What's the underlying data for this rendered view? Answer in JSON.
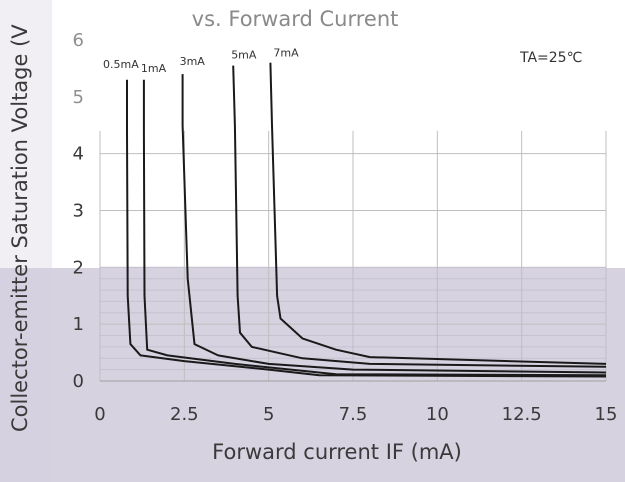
{
  "chart_data": {
    "type": "line",
    "title": "vs. Forward Current",
    "xlabel": "Forward current IF (mA)",
    "ylabel": "Collector-emitter Saturation Voltage (V",
    "annotation": "TA=25℃",
    "xlim": [
      0,
      15
    ],
    "ylim": [
      0,
      6
    ],
    "x_ticks": [
      "0",
      "2.5",
      "5",
      "7.5",
      "10",
      "12.5",
      "15"
    ],
    "y_ticks": [
      "0",
      "1",
      "2",
      "3",
      "4",
      "5",
      "6"
    ],
    "grid": true,
    "legend": "none",
    "colors": {
      "line": "#1a1a1a",
      "plot_background": "#ffffff",
      "lower_band": "#d6d2e0",
      "grid": "#bfbfbf"
    },
    "series": [
      {
        "name": "0.5mA",
        "points": [
          [
            0.8,
            5.3
          ],
          [
            0.8,
            4.4
          ],
          [
            0.82,
            1.5
          ],
          [
            0.9,
            0.65
          ],
          [
            1.2,
            0.45
          ],
          [
            2.5,
            0.35
          ],
          [
            5,
            0.2
          ],
          [
            6.5,
            0.1
          ],
          [
            15,
            0.08
          ]
        ]
      },
      {
        "name": "1mA",
        "points": [
          [
            1.3,
            5.3
          ],
          [
            1.3,
            4.4
          ],
          [
            1.32,
            1.5
          ],
          [
            1.4,
            0.55
          ],
          [
            2,
            0.45
          ],
          [
            4,
            0.3
          ],
          [
            7,
            0.12
          ],
          [
            15,
            0.1
          ]
        ]
      },
      {
        "name": "3mA",
        "points": [
          [
            2.45,
            5.4
          ],
          [
            2.45,
            4.5
          ],
          [
            2.6,
            1.8
          ],
          [
            2.8,
            0.65
          ],
          [
            3.5,
            0.45
          ],
          [
            5,
            0.3
          ],
          [
            7.5,
            0.2
          ],
          [
            15,
            0.15
          ]
        ]
      },
      {
        "name": "5mA",
        "points": [
          [
            3.95,
            5.55
          ],
          [
            4,
            4.5
          ],
          [
            4.08,
            1.5
          ],
          [
            4.15,
            0.85
          ],
          [
            4.5,
            0.6
          ],
          [
            6,
            0.4
          ],
          [
            8,
            0.3
          ],
          [
            15,
            0.25
          ]
        ]
      },
      {
        "name": "7mA",
        "points": [
          [
            5.05,
            5.6
          ],
          [
            5.1,
            4.5
          ],
          [
            5.25,
            1.5
          ],
          [
            5.35,
            1.1
          ],
          [
            6,
            0.75
          ],
          [
            7,
            0.55
          ],
          [
            8,
            0.42
          ],
          [
            15,
            0.3
          ]
        ]
      }
    ]
  }
}
